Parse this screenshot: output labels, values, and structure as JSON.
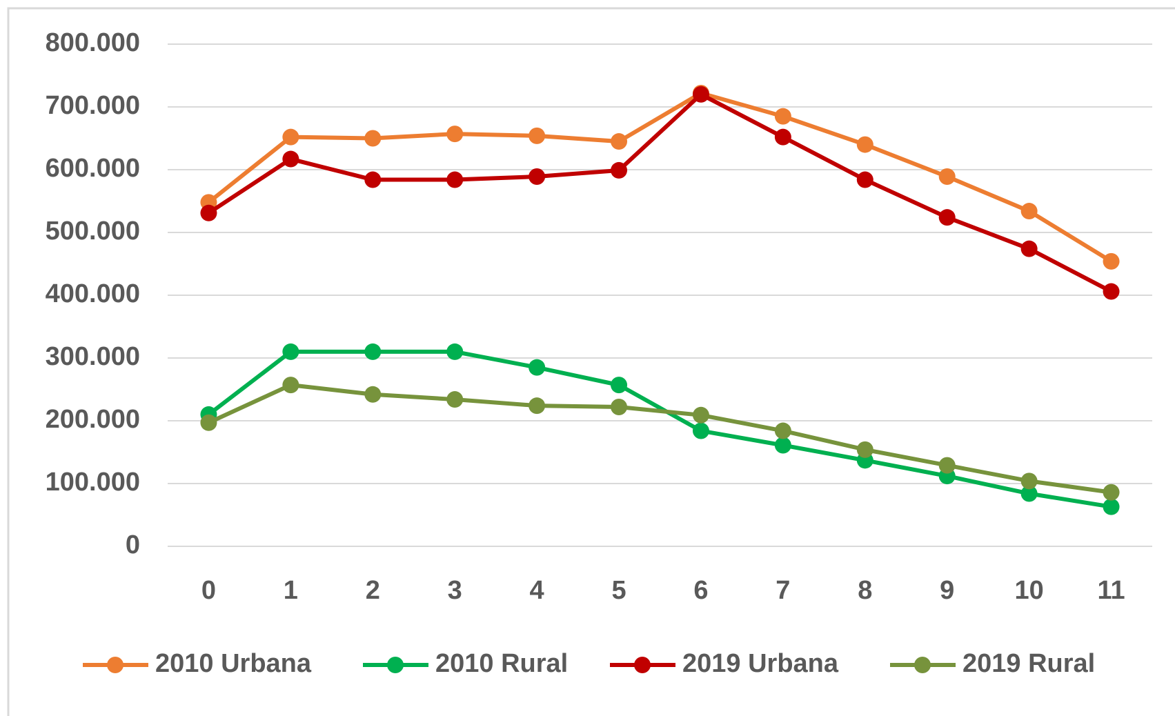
{
  "chart_data": {
    "type": "line",
    "categories": [
      "0",
      "1",
      "2",
      "3",
      "4",
      "5",
      "6",
      "7",
      "8",
      "9",
      "10",
      "11"
    ],
    "series": [
      {
        "name": "2010 Urbana",
        "color": "#ED7D31",
        "values": [
          548000,
          652000,
          650000,
          657000,
          654000,
          645000,
          722000,
          685000,
          640000,
          589000,
          534000,
          454000
        ]
      },
      {
        "name": "2010 Rural",
        "color": "#00B050",
        "values": [
          210000,
          310000,
          310000,
          310000,
          285000,
          257000,
          184000,
          161000,
          137000,
          112000,
          84000,
          63000
        ]
      },
      {
        "name": "2019 Urbana",
        "color": "#C00000",
        "values": [
          531000,
          617000,
          584000,
          584000,
          589000,
          599000,
          720000,
          652000,
          584000,
          524000,
          474000,
          406000
        ]
      },
      {
        "name": "2019 Rural",
        "color": "#77933C",
        "values": [
          197000,
          257000,
          242000,
          234000,
          224000,
          222000,
          209000,
          184000,
          154000,
          129000,
          104000,
          86000
        ]
      }
    ],
    "ylim": [
      0,
      800000
    ],
    "yticks": [
      0,
      {
        "value": 100000,
        "label": "100.000"
      },
      {
        "value": 200000,
        "label": "200.000"
      },
      {
        "value": 300000,
        "label": "300.000"
      },
      {
        "value": 400000,
        "label": "400.000"
      },
      {
        "value": 500000,
        "label": "500.000"
      },
      {
        "value": 600000,
        "label": "600.000"
      },
      {
        "value": 700000,
        "label": "700.000"
      },
      {
        "value": 800000,
        "label": "800.000"
      }
    ],
    "grid": true,
    "legend": "bottom"
  }
}
